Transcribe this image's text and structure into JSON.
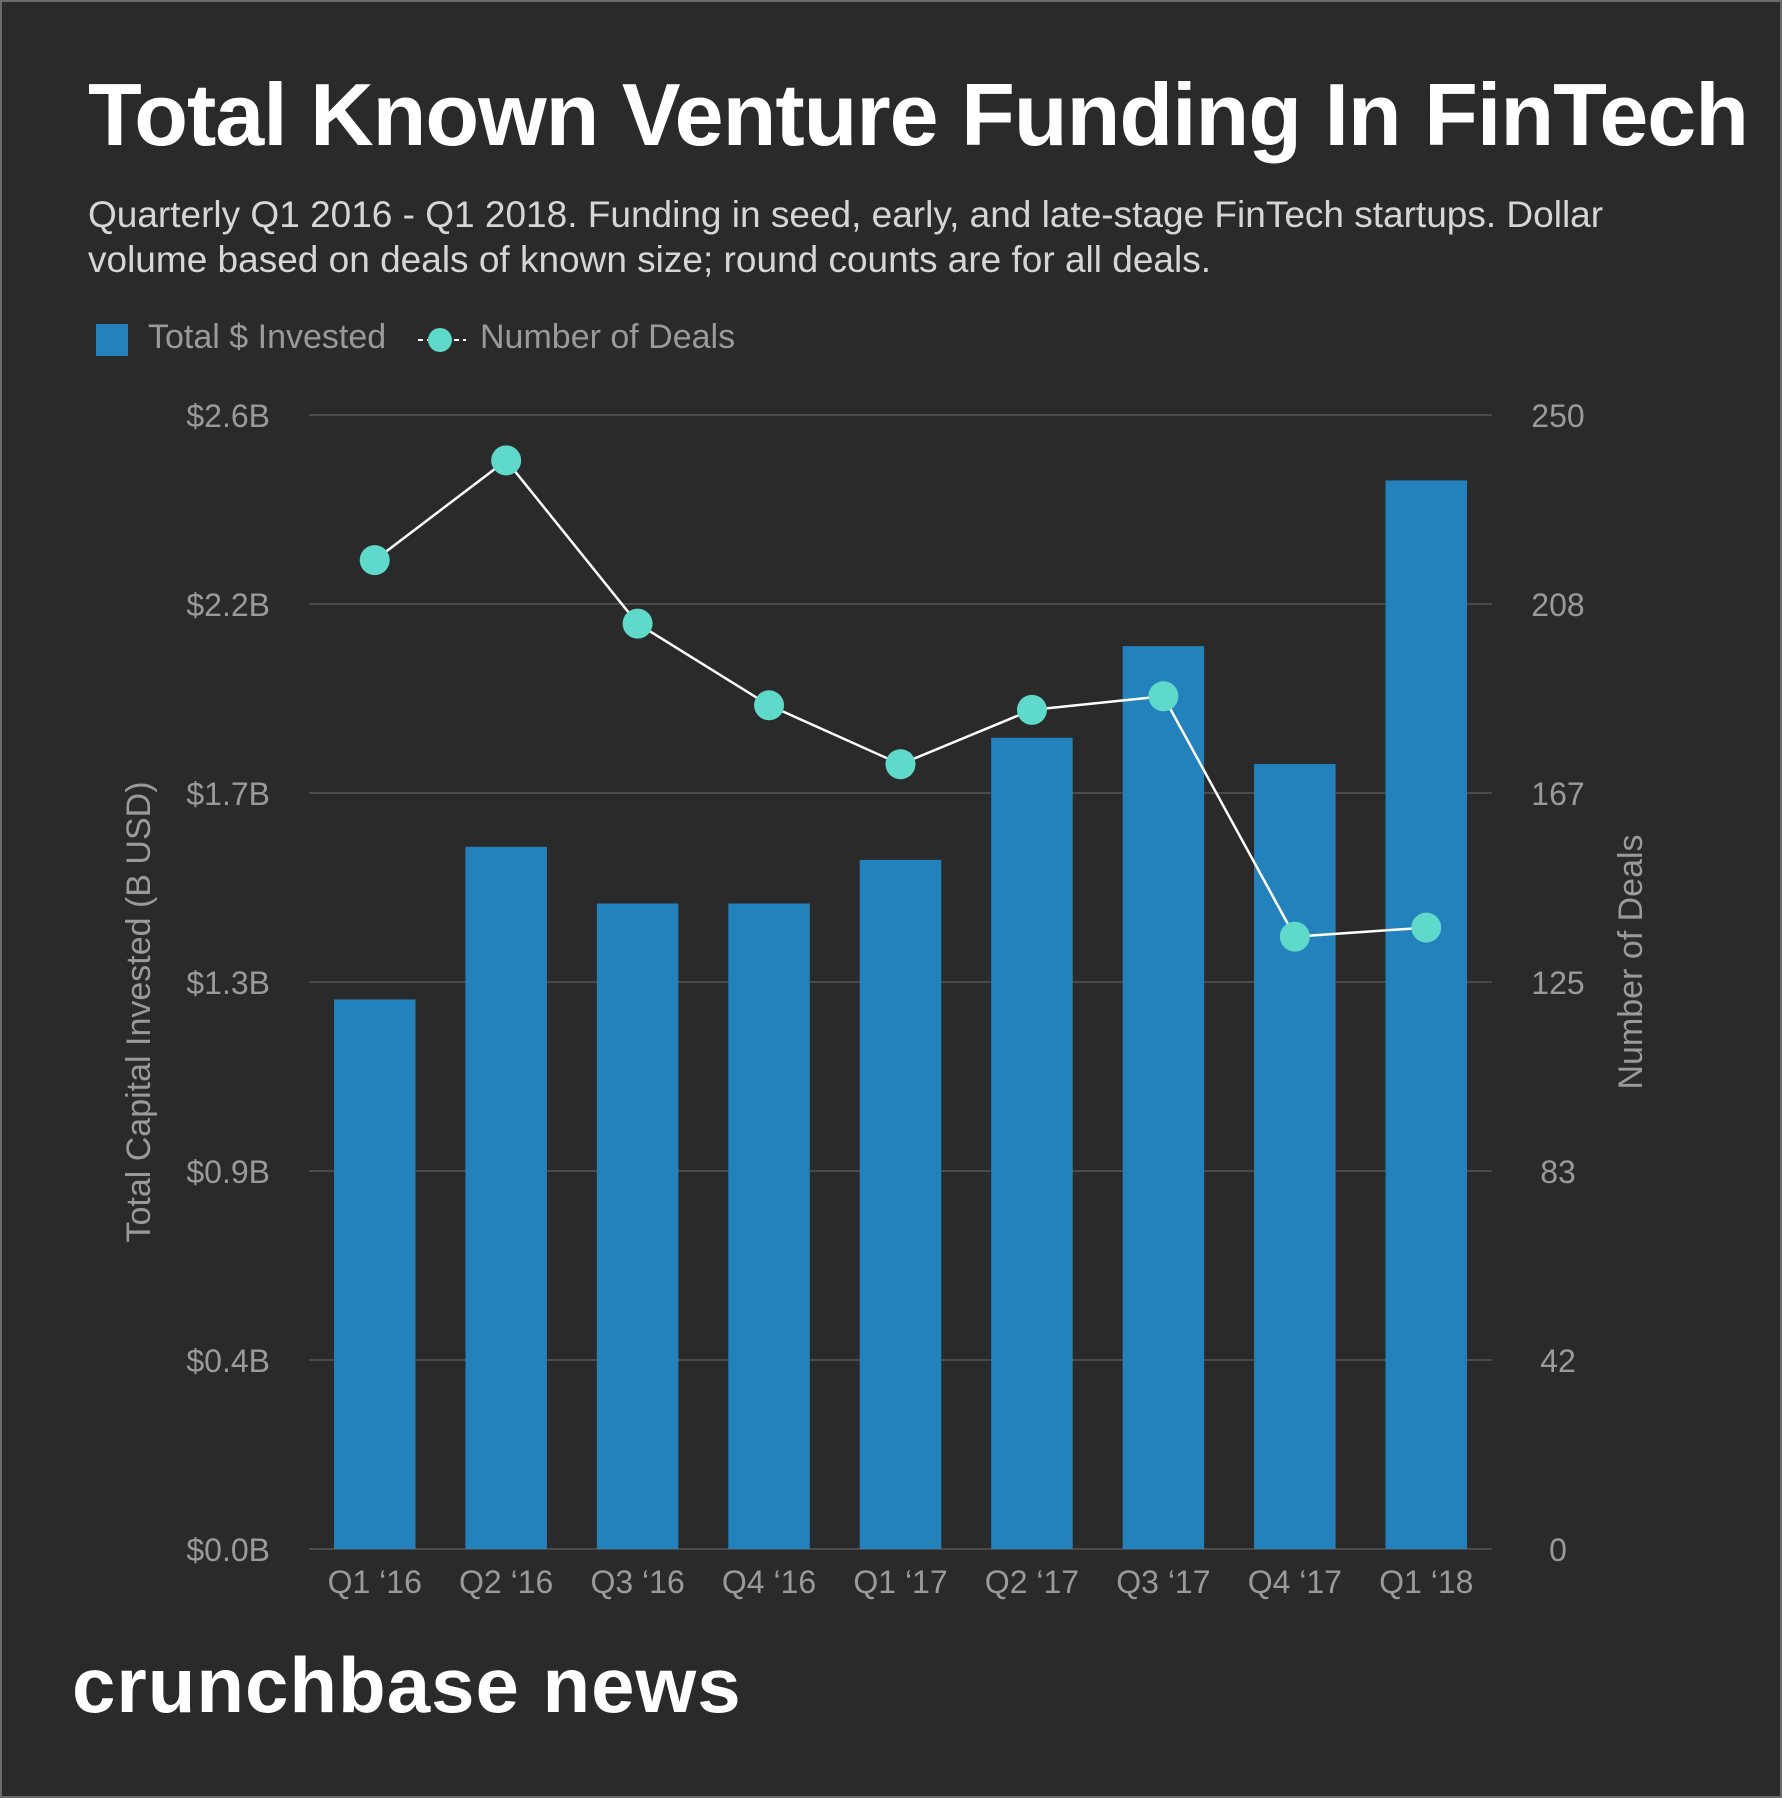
{
  "title": "Total Known Venture Funding In FinTech",
  "subtitle": "Quarterly Q1 2016 - Q1 2018. Funding in seed, early, and late-stage FinTech startups. Dollar volume based on deals of known size; round counts are for all deals.",
  "brand": "crunchbase news",
  "colors": {
    "background": "#2a2a2a",
    "bars": "#2382bb",
    "line": "#ffffff",
    "markers": "#5fd9c9",
    "grid": "#555555",
    "axis_text": "#9a9a9a"
  },
  "chart_data": {
    "type": "bar",
    "categories": [
      "Q1 ‘16",
      "Q2 ‘16",
      "Q3 ‘16",
      "Q4 ‘16",
      "Q1 ‘17",
      "Q2 ‘17",
      "Q3 ‘17",
      "Q4 ‘17",
      "Q1 ‘18"
    ],
    "series": [
      {
        "name": "Total $ Invested",
        "type": "bar",
        "axis": "left",
        "values": [
          1.26,
          1.61,
          1.48,
          1.48,
          1.58,
          1.86,
          2.07,
          1.8,
          2.45
        ]
      },
      {
        "name": "Number of Deals",
        "type": "line",
        "axis": "right",
        "values": [
          218,
          240,
          204,
          186,
          173,
          185,
          188,
          135,
          137
        ]
      }
    ],
    "y_left": {
      "label": "Total Capital Invested (B USD)",
      "range": [
        0,
        2.6
      ],
      "ticks": [
        "$0.0B",
        "$0.4B",
        "$0.9B",
        "$1.3B",
        "$1.7B",
        "$2.2B",
        "$2.6B"
      ]
    },
    "y_right": {
      "label": "Number of Deals",
      "range": [
        0,
        250
      ],
      "ticks": [
        "0",
        "42",
        "83",
        "125",
        "167",
        "208",
        "250"
      ]
    },
    "grid": true,
    "legend": "top-left"
  }
}
